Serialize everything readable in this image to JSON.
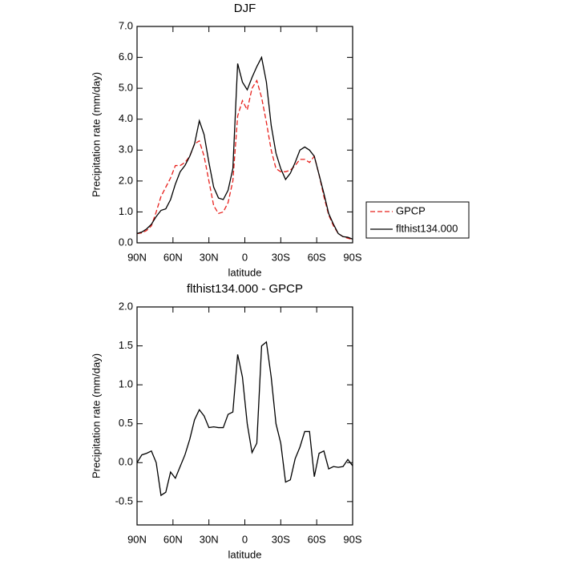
{
  "chart_data": [
    {
      "type": "line",
      "title": "DJF",
      "x_label": "latitude",
      "y_label": "Precipitation rate (mm/day)",
      "x": [
        90,
        86,
        82,
        78,
        74,
        70,
        66,
        62,
        58,
        54,
        50,
        46,
        42,
        38,
        34,
        30,
        26,
        22,
        18,
        14,
        10,
        6,
        2,
        -2,
        -6,
        -10,
        -14,
        -18,
        -22,
        -26,
        -30,
        -34,
        -38,
        -42,
        -46,
        -50,
        -54,
        -58,
        -62,
        -66,
        -70,
        -74,
        -78,
        -82,
        -86,
        -90
      ],
      "series": [
        {
          "name": "GPCP",
          "color": "#e8201c",
          "line_style": "dashed",
          "values": [
            0.3,
            0.32,
            0.4,
            0.55,
            1.0,
            1.5,
            1.8,
            2.1,
            2.5,
            2.5,
            2.6,
            2.8,
            3.2,
            3.3,
            2.8,
            2.0,
            1.2,
            0.95,
            1.0,
            1.3,
            2.0,
            4.1,
            4.6,
            4.3,
            5.0,
            5.25,
            4.7,
            3.9,
            3.0,
            2.4,
            2.3,
            2.3,
            2.35,
            2.5,
            2.7,
            2.7,
            2.6,
            2.8,
            2.2,
            1.5,
            0.9,
            0.55,
            0.3,
            0.2,
            0.15,
            0.1
          ]
        },
        {
          "name": "flthist134.000",
          "color": "#000000",
          "line_style": "solid",
          "values": [
            0.3,
            0.35,
            0.45,
            0.6,
            0.85,
            1.05,
            1.1,
            1.4,
            1.9,
            2.3,
            2.5,
            2.8,
            3.2,
            3.95,
            3.5,
            2.6,
            1.8,
            1.45,
            1.4,
            1.7,
            2.4,
            5.8,
            5.2,
            4.95,
            5.35,
            5.7,
            6.0,
            5.2,
            3.8,
            2.9,
            2.4,
            2.05,
            2.25,
            2.6,
            3.0,
            3.1,
            3.0,
            2.8,
            2.2,
            1.6,
            0.95,
            0.6,
            0.3,
            0.2,
            0.18,
            0.12
          ]
        }
      ],
      "xlim": [
        90,
        -90
      ],
      "xticks": [
        {
          "value": 90,
          "label": "90N"
        },
        {
          "value": 60,
          "label": "60N"
        },
        {
          "value": 30,
          "label": "30N"
        },
        0,
        {
          "value": -30,
          "label": "30S"
        },
        {
          "value": -60,
          "label": "60S"
        },
        {
          "value": -90,
          "label": "90S"
        }
      ],
      "ylim": [
        0,
        7
      ],
      "yticks": [
        {
          "value": 0,
          "label": "0.0"
        },
        {
          "value": 1,
          "label": "1.0"
        },
        {
          "value": 2,
          "label": "2.0"
        },
        {
          "value": 3,
          "label": "3.0"
        },
        {
          "value": 4,
          "label": "4.0"
        },
        {
          "value": 5,
          "label": "5.0"
        },
        {
          "value": 6,
          "label": "6.0"
        },
        {
          "value": 7,
          "label": "7.0"
        }
      ],
      "legend": "right"
    },
    {
      "type": "line",
      "title": "flthist134.000 - GPCP",
      "x_label": "latitude",
      "y_label": "Precipitation rate (mm/day)",
      "x": [
        90,
        86,
        82,
        78,
        74,
        70,
        66,
        62,
        58,
        54,
        50,
        46,
        42,
        38,
        34,
        30,
        26,
        22,
        18,
        14,
        10,
        6,
        2,
        -2,
        -6,
        -10,
        -14,
        -18,
        -22,
        -26,
        -30,
        -34,
        -38,
        -42,
        -46,
        -50,
        -54,
        -58,
        -62,
        -66,
        -70,
        -74,
        -78,
        -82,
        -86,
        -90
      ],
      "values": [
        0.0,
        0.1,
        0.12,
        0.15,
        0.0,
        -0.42,
        -0.38,
        -0.12,
        -0.2,
        -0.05,
        0.1,
        0.3,
        0.55,
        0.68,
        0.6,
        0.45,
        0.46,
        0.45,
        0.45,
        0.62,
        0.65,
        1.39,
        1.1,
        0.5,
        0.13,
        0.25,
        1.5,
        1.55,
        1.1,
        0.5,
        0.25,
        -0.25,
        -0.22,
        0.05,
        0.2,
        0.4,
        0.4,
        -0.18,
        0.12,
        0.15,
        -0.08,
        -0.05,
        -0.06,
        -0.05,
        0.04,
        -0.04
      ],
      "color": "#000000",
      "xlim": [
        90,
        -90
      ],
      "xticks": [
        {
          "value": 90,
          "label": "90N"
        },
        {
          "value": 60,
          "label": "60N"
        },
        {
          "value": 30,
          "label": "30N"
        },
        0,
        {
          "value": -30,
          "label": "30S"
        },
        {
          "value": -60,
          "label": "60S"
        },
        {
          "value": -90,
          "label": "90S"
        }
      ],
      "ylim": [
        -0.8,
        2.0
      ],
      "yticks": [
        {
          "value": -0.5,
          "label": "-0.5"
        },
        {
          "value": 0,
          "label": "0.0"
        },
        {
          "value": 0.5,
          "label": "0.5"
        },
        {
          "value": 1,
          "label": "1.0"
        },
        {
          "value": 1.5,
          "label": "1.5"
        },
        {
          "value": 2,
          "label": "2.0"
        }
      ]
    }
  ]
}
